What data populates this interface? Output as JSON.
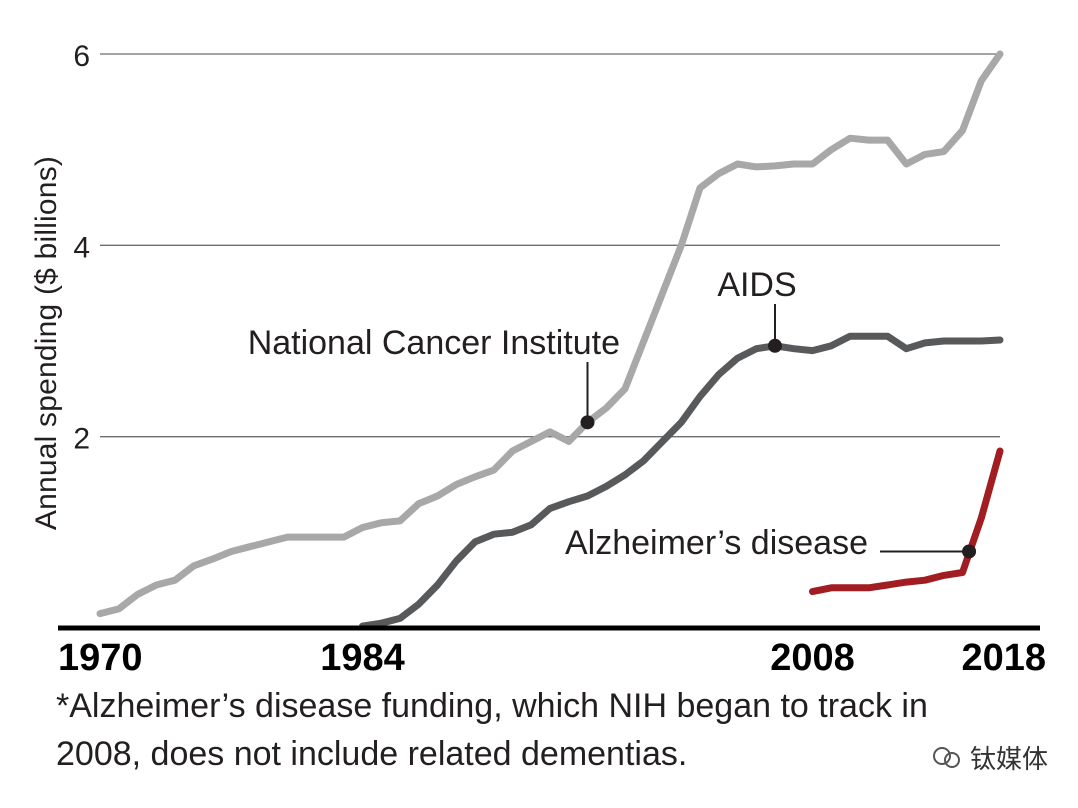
{
  "chart_data": {
    "type": "line",
    "title": "",
    "xlabel": "",
    "ylabel": "Annual spending ($ billions)",
    "xlim": [
      1970,
      2018
    ],
    "ylim": [
      0,
      6
    ],
    "y_ticks": [
      2,
      4,
      6
    ],
    "x_ticks": [
      "1970",
      "1984",
      "2008",
      "2018"
    ],
    "x_tick_values": [
      1970,
      1984,
      2008,
      2018
    ],
    "grid": true,
    "series": [
      {
        "name": "National Cancer Institute",
        "color": "#a8a8a8",
        "x": [
          1970,
          1971,
          1972,
          1973,
          1974,
          1975,
          1976,
          1977,
          1978,
          1979,
          1980,
          1981,
          1982,
          1983,
          1984,
          1985,
          1986,
          1987,
          1988,
          1989,
          1990,
          1991,
          1992,
          1993,
          1994,
          1995,
          1996,
          1997,
          1998,
          1999,
          2000,
          2001,
          2002,
          2003,
          2004,
          2005,
          2006,
          2007,
          2008,
          2009,
          2010,
          2011,
          2012,
          2013,
          2014,
          2015,
          2016,
          2017,
          2018
        ],
        "values": [
          0.15,
          0.2,
          0.35,
          0.45,
          0.5,
          0.65,
          0.72,
          0.8,
          0.85,
          0.9,
          0.95,
          0.95,
          0.95,
          0.95,
          1.05,
          1.1,
          1.12,
          1.3,
          1.38,
          1.5,
          1.58,
          1.65,
          1.85,
          1.95,
          2.05,
          1.95,
          2.15,
          2.3,
          2.5,
          3.0,
          3.5,
          4.0,
          4.6,
          4.75,
          4.85,
          4.82,
          4.83,
          4.85,
          4.85,
          5.0,
          5.12,
          5.1,
          5.1,
          4.85,
          4.95,
          4.98,
          5.2,
          5.72,
          6.0
        ]
      },
      {
        "name": "AIDS",
        "color": "#58595b",
        "x": [
          1984,
          1985,
          1986,
          1987,
          1988,
          1989,
          1990,
          1991,
          1992,
          1993,
          1994,
          1995,
          1996,
          1997,
          1998,
          1999,
          2000,
          2001,
          2002,
          2003,
          2004,
          2005,
          2006,
          2007,
          2008,
          2009,
          2010,
          2011,
          2012,
          2013,
          2014,
          2015,
          2016,
          2017,
          2018
        ],
        "values": [
          0.02,
          0.05,
          0.1,
          0.25,
          0.45,
          0.7,
          0.9,
          0.98,
          1.0,
          1.08,
          1.25,
          1.32,
          1.38,
          1.48,
          1.6,
          1.75,
          1.95,
          2.15,
          2.42,
          2.65,
          2.82,
          2.92,
          2.95,
          2.92,
          2.9,
          2.95,
          3.05,
          3.05,
          3.05,
          2.92,
          2.98,
          3.0,
          3.0,
          3.0,
          3.01
        ]
      },
      {
        "name": "Alzheimer’s disease",
        "color": "#a11d21",
        "x": [
          2008,
          2009,
          2010,
          2011,
          2012,
          2013,
          2014,
          2015,
          2016,
          2017,
          2018
        ],
        "values": [
          0.38,
          0.42,
          0.42,
          0.42,
          0.45,
          0.48,
          0.5,
          0.55,
          0.58,
          1.15,
          1.85
        ]
      }
    ],
    "annotations": [
      {
        "text": "National Cancer Institute",
        "series": 0,
        "x": 1996
      },
      {
        "text": "AIDS",
        "series": 1,
        "x": 2006
      },
      {
        "text": "Alzheimer’s disease",
        "series": 2,
        "x": 2016
      }
    ]
  },
  "footnote": "*Alzheimer’s disease funding, which NIH began to track in 2008, does not include related dementias.",
  "watermark": "钛媒体"
}
